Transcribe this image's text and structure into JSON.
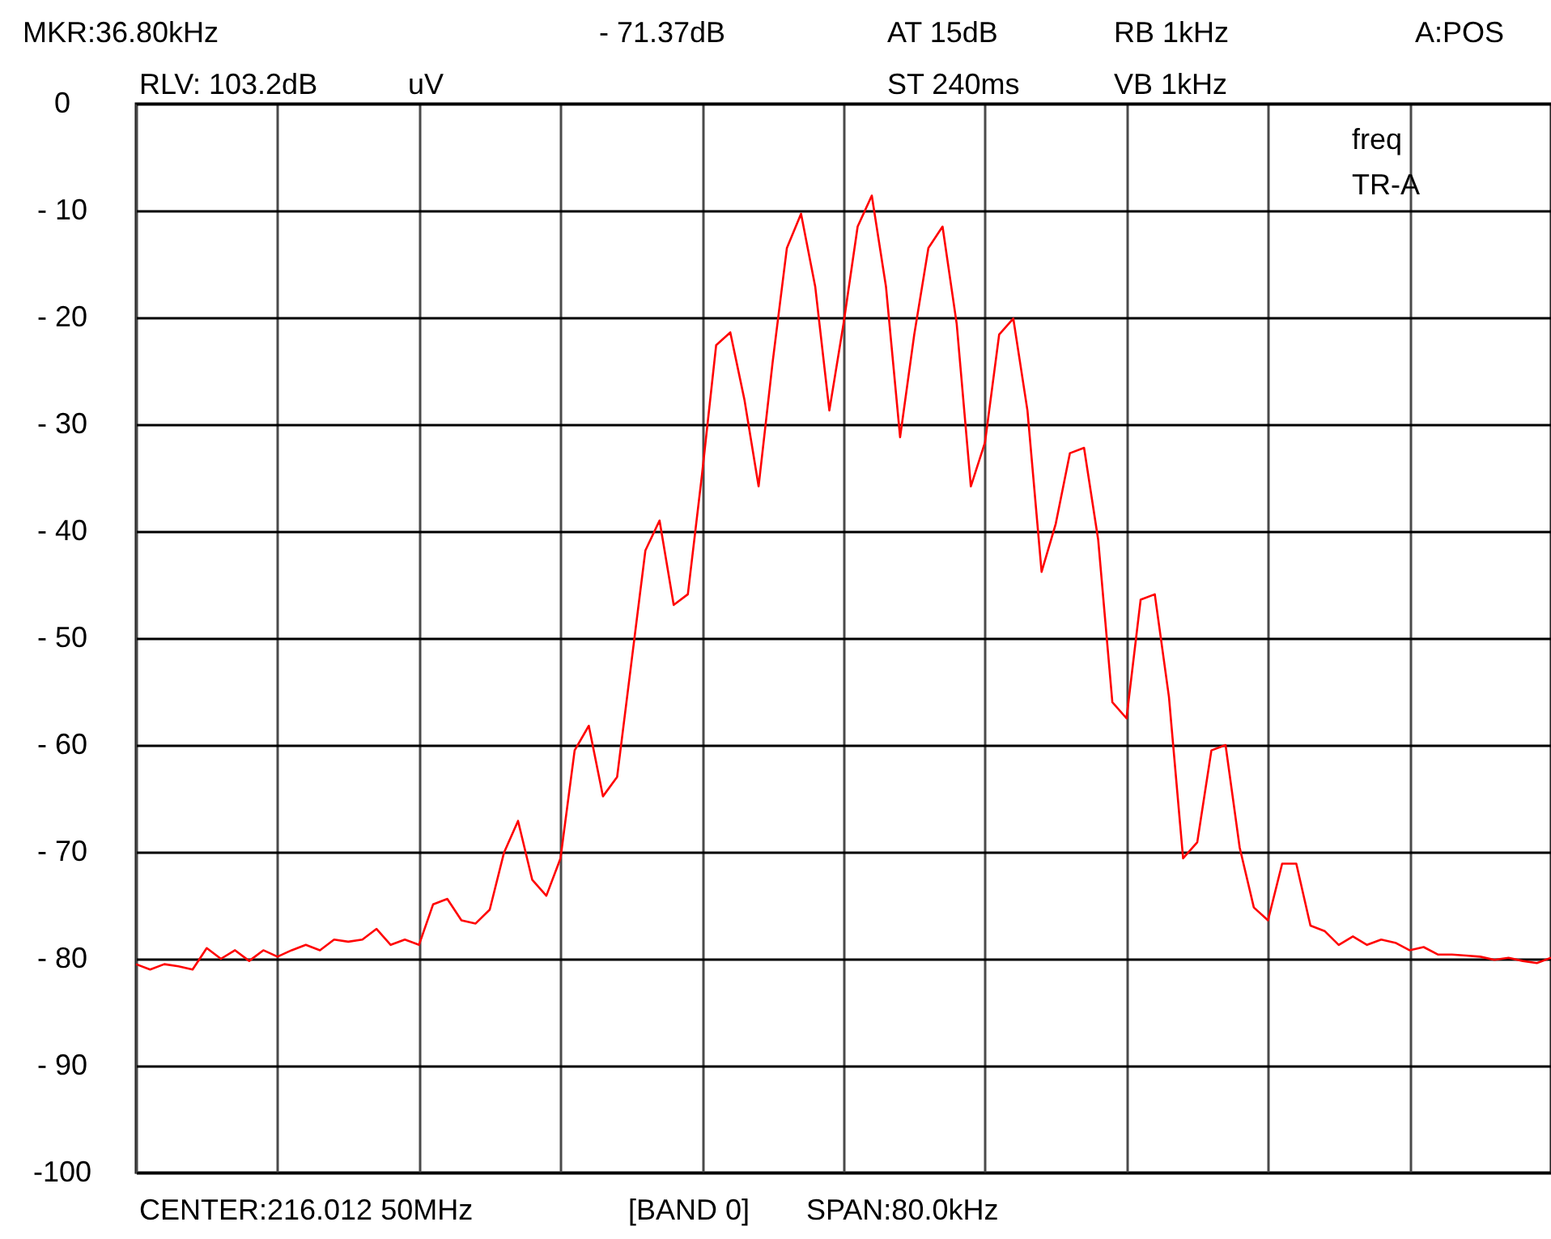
{
  "chart_data": {
    "type": "line",
    "categories": [
      null,
      null,
      null,
      null,
      null,
      null,
      null,
      null,
      null,
      null,
      null,
      null,
      null,
      null,
      null,
      null,
      null,
      null,
      null,
      null,
      null,
      null,
      null,
      null,
      null,
      null,
      null,
      null,
      null,
      null,
      null,
      null,
      null,
      null,
      null,
      null,
      null,
      null,
      null,
      null,
      null,
      null,
      null,
      null,
      null,
      null,
      null,
      null,
      null,
      null,
      null,
      null,
      null,
      null,
      null,
      null,
      null,
      null,
      null,
      null,
      null,
      null,
      null,
      null,
      null,
      null,
      null,
      null,
      null,
      null,
      null,
      null,
      null,
      null,
      null,
      null,
      null,
      null,
      null,
      null,
      null,
      null,
      null,
      null,
      null,
      null,
      null,
      null,
      null,
      null,
      null,
      null,
      null,
      null,
      null,
      null,
      null,
      null,
      null,
      null,
      null
    ],
    "series": [
      {
        "color": "#ff0000",
        "values": [
          -80.5,
          -81.0,
          -80.5,
          -80.7,
          -81.0,
          -79.0,
          -80.0,
          -79.2,
          -80.2,
          -79.2,
          -79.8,
          -79.2,
          -78.7,
          -79.2,
          -78.2,
          -78.4,
          -78.2,
          -77.2,
          -78.7,
          -78.2,
          -78.7,
          -74.9,
          -74.4,
          -76.4,
          -76.7,
          -75.4,
          -70.1,
          -67.1,
          -72.6,
          -74.1,
          -70.6,
          -60.5,
          -58.2,
          -64.8,
          -63.0,
          -52.4,
          -41.8,
          -39.0,
          -46.9,
          -45.9,
          -34.7,
          -22.6,
          -21.4,
          -27.7,
          -35.8,
          -24.1,
          -13.5,
          -10.3,
          -17.1,
          -28.7,
          -20.6,
          -11.5,
          -8.6,
          -17.1,
          -31.2,
          -21.6,
          -13.5,
          -11.5,
          -20.6,
          -35.8,
          -31.7,
          -21.6,
          -20.1,
          -28.7,
          -43.8,
          -39.3,
          -32.7,
          -32.2,
          -40.8,
          -56.0,
          -57.5,
          -46.4,
          -45.9,
          -55.5,
          -70.6,
          -69.1,
          -60.5,
          -60.0,
          -69.6,
          -75.2,
          -76.4,
          -71.1,
          -71.1,
          -76.9,
          -77.4,
          -78.7,
          -77.9,
          -78.7,
          -78.2,
          -78.5,
          -79.2,
          -78.9,
          -79.6,
          -79.6,
          -79.7,
          -79.8,
          -80.1,
          -79.9,
          -80.2,
          -80.4,
          -79.9
        ]
      }
    ],
    "ylim": [
      -100,
      0
    ],
    "yticks": [
      {
        "value": 0,
        "label": "0"
      },
      {
        "value": -10,
        "label": "- 10"
      },
      {
        "value": -20,
        "label": "- 20"
      },
      {
        "value": -30,
        "label": "- 30"
      },
      {
        "value": -40,
        "label": "- 40"
      },
      {
        "value": -50,
        "label": "- 50"
      },
      {
        "value": -60,
        "label": "- 60"
      },
      {
        "value": -70,
        "label": "- 70"
      },
      {
        "value": -80,
        "label": "- 80"
      },
      {
        "value": -90,
        "label": "- 90"
      },
      {
        "value": -100,
        "label": "-100"
      }
    ],
    "grid": true,
    "line_style": "solid",
    "marker": "none",
    "tick_labels": "y",
    "annotations": [
      "MKR:36.80kHz",
      "- 71.37dB",
      "AT 15dB",
      "RB 1kHz",
      "A:POS",
      "RLV: 103.2dB",
      "uV",
      "ST 240ms",
      "VB 1kHz",
      "freq",
      "TR-A",
      "CENTER:216.012 50MHz",
      "[BAND 0]",
      "SPAN:80.0kHz"
    ]
  }
}
